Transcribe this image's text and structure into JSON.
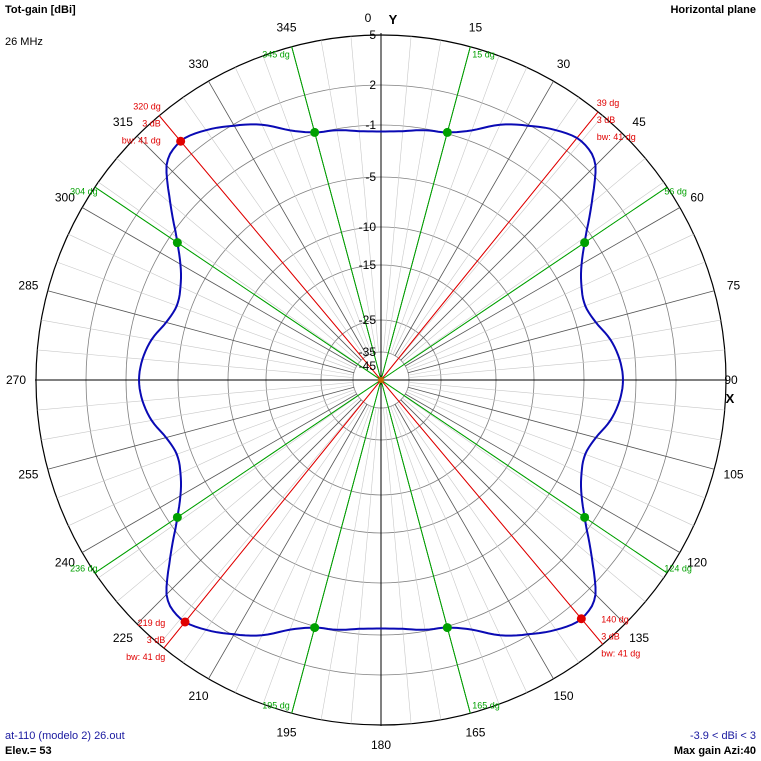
{
  "header": {
    "title": "Tot-gain [dBi]",
    "frequency": "26 MHz",
    "plane": "Horizontal plane"
  },
  "footer": {
    "filename": "at-110 (modelo 2) 26.out",
    "elevation": "Elev.= 53",
    "range": "-3.9 < dBi < 3",
    "max_gain": "Max gain Azi:40"
  },
  "axes": {
    "y_label": "Y",
    "x_label": "X"
  },
  "colors": {
    "pattern": "#0a0ab4",
    "green_marker": "#00a000",
    "red_marker": "#e00000",
    "grid": "#808080",
    "axis": "#000000"
  },
  "chart_data": {
    "type": "polar",
    "quantity": "Tot-gain [dBi]",
    "azimuth_ticks": [
      0,
      15,
      30,
      45,
      60,
      75,
      90,
      105,
      120,
      135,
      150,
      165,
      180,
      195,
      210,
      225,
      240,
      255,
      270,
      285,
      300,
      315,
      330,
      345
    ],
    "radial_ticks": [
      "5",
      "2",
      "-1",
      "-5",
      "-10",
      "-15",
      "-25",
      "-35",
      "-45"
    ],
    "radial_tick_values": [
      5,
      2,
      -1,
      -5,
      -10,
      -15,
      -25,
      -35,
      -45
    ],
    "pattern_azimuth": [
      0,
      5,
      10,
      15,
      20,
      25,
      30,
      35,
      40,
      45,
      50,
      55,
      60,
      65,
      70,
      75,
      80,
      85,
      90,
      95,
      100,
      105,
      110,
      115,
      120,
      125,
      130,
      135,
      140,
      145,
      150,
      155,
      160,
      165,
      170,
      175,
      180,
      185,
      190,
      195,
      200,
      205,
      210,
      215,
      220,
      225,
      230,
      235,
      240,
      245,
      250,
      255,
      260,
      265,
      270,
      275,
      280,
      285,
      290,
      295,
      300,
      305,
      310,
      315,
      320,
      325,
      330,
      335,
      340,
      345,
      350,
      355
    ],
    "pattern_gain_dbi": [
      -1.5,
      -1.4,
      -1.1,
      -0.9,
      -0.2,
      1.0,
      1.9,
      2.6,
      3.0,
      2.5,
      0.5,
      -1.4,
      -2.8,
      -3.6,
      -3.9,
      -3.5,
      -2.7,
      -2.2,
      -2.0,
      -2.2,
      -2.7,
      -3.5,
      -3.9,
      -3.6,
      -2.8,
      -1.4,
      0.5,
      2.5,
      3.0,
      2.6,
      1.9,
      1.0,
      -0.2,
      -0.9,
      -1.1,
      -1.4,
      -1.5,
      -1.4,
      -1.1,
      -0.9,
      -0.2,
      1.0,
      1.9,
      2.6,
      3.0,
      2.5,
      0.5,
      -1.4,
      -2.8,
      -3.6,
      -3.9,
      -3.5,
      -2.7,
      -2.2,
      -2.0,
      -2.2,
      -2.7,
      -3.5,
      -3.9,
      -3.6,
      -2.8,
      -1.4,
      0.5,
      2.5,
      3.0,
      2.6,
      1.9,
      1.0,
      -0.2,
      -0.9,
      -1.1,
      -1.4
    ],
    "green_markers": [
      {
        "azimuth": 15,
        "label": "15 dg"
      },
      {
        "azimuth": 56,
        "label": "56 dg"
      },
      {
        "azimuth": 124,
        "label": "124 dg"
      },
      {
        "azimuth": 165,
        "label": "165 dg"
      },
      {
        "azimuth": 195,
        "label": "195 dg"
      },
      {
        "azimuth": 236,
        "label": "236 dg"
      },
      {
        "azimuth": 304,
        "label": "304 dg"
      },
      {
        "azimuth": 345,
        "label": "345 dg"
      }
    ],
    "red_markers": [
      {
        "azimuth": 39,
        "label": "39 dg",
        "db": "3 dB",
        "bw": "bw: 41 dg",
        "dot": false
      },
      {
        "azimuth": 140,
        "label": "140 dg",
        "db": "3 dB",
        "bw": "bw: 41 dg",
        "dot": true
      },
      {
        "azimuth": 219,
        "label": "219 dg",
        "db": "3 dB",
        "bw": "bw: 41 dg",
        "dot": true
      },
      {
        "azimuth": 320,
        "label": "320 dg",
        "db": "3 dB",
        "bw": "bw: 41 dg",
        "dot": true
      }
    ]
  }
}
